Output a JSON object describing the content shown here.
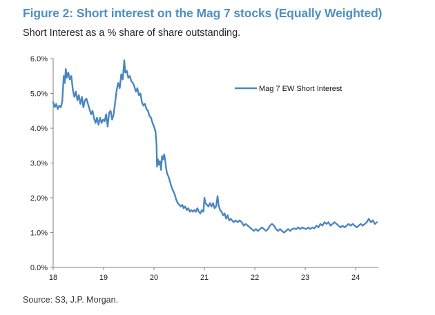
{
  "header": {
    "title": "Figure 2: Short interest on the Mag 7 stocks (Equally Weighted)",
    "subtitle": "Short Interest as a % share of share outstanding."
  },
  "footer": {
    "source": "Source: S3, J.P. Morgan."
  },
  "colors": {
    "title": "#4f8fc4",
    "line": "#4a86c0",
    "axis": "#7f7f7f"
  },
  "chart_data": {
    "type": "line",
    "title": "",
    "xlabel": "",
    "ylabel": "",
    "xlim": [
      18,
      24.45
    ],
    "ylim": [
      0,
      6
    ],
    "grid": false,
    "legend_position": "top-right",
    "y_ticks": [
      "0.0%",
      "1.0%",
      "2.0%",
      "3.0%",
      "4.0%",
      "5.0%",
      "6.0%"
    ],
    "x_ticks": [
      "18",
      "19",
      "20",
      "21",
      "22",
      "23",
      "24"
    ],
    "series": [
      {
        "name": "Mag 7 EW Short Interest",
        "points": [
          [
            18.0,
            4.75
          ],
          [
            18.03,
            4.6
          ],
          [
            18.06,
            4.7
          ],
          [
            18.09,
            4.55
          ],
          [
            18.12,
            4.65
          ],
          [
            18.15,
            4.6
          ],
          [
            18.18,
            4.75
          ],
          [
            18.21,
            5.5
          ],
          [
            18.23,
            5.3
          ],
          [
            18.25,
            5.7
          ],
          [
            18.27,
            5.45
          ],
          [
            18.3,
            5.6
          ],
          [
            18.33,
            5.4
          ],
          [
            18.36,
            5.5
          ],
          [
            18.39,
            5.1
          ],
          [
            18.42,
            4.9
          ],
          [
            18.45,
            5.05
          ],
          [
            18.48,
            4.8
          ],
          [
            18.51,
            4.95
          ],
          [
            18.54,
            4.7
          ],
          [
            18.57,
            4.9
          ],
          [
            18.6,
            4.6
          ],
          [
            18.63,
            4.8
          ],
          [
            18.66,
            4.85
          ],
          [
            18.69,
            4.7
          ],
          [
            18.72,
            4.55
          ],
          [
            18.75,
            4.4
          ],
          [
            18.78,
            4.5
          ],
          [
            18.81,
            4.3
          ],
          [
            18.84,
            4.15
          ],
          [
            18.87,
            4.3
          ],
          [
            18.9,
            4.1
          ],
          [
            18.93,
            4.3
          ],
          [
            18.96,
            4.15
          ],
          [
            18.99,
            4.25
          ],
          [
            19.02,
            4.2
          ],
          [
            19.05,
            4.4
          ],
          [
            19.08,
            4.05
          ],
          [
            19.11,
            4.45
          ],
          [
            19.14,
            4.5
          ],
          [
            19.17,
            4.25
          ],
          [
            19.2,
            4.4
          ],
          [
            19.23,
            4.75
          ],
          [
            19.26,
            5.1
          ],
          [
            19.29,
            5.3
          ],
          [
            19.32,
            5.15
          ],
          [
            19.35,
            5.55
          ],
          [
            19.38,
            5.4
          ],
          [
            19.41,
            5.95
          ],
          [
            19.43,
            5.6
          ],
          [
            19.46,
            5.65
          ],
          [
            19.49,
            5.45
          ],
          [
            19.52,
            5.5
          ],
          [
            19.55,
            5.35
          ],
          [
            19.58,
            5.3
          ],
          [
            19.61,
            5.2
          ],
          [
            19.64,
            5.05
          ],
          [
            19.67,
            5.15
          ],
          [
            19.7,
            4.95
          ],
          [
            19.73,
            5.0
          ],
          [
            19.76,
            4.75
          ],
          [
            19.79,
            4.65
          ],
          [
            19.82,
            4.7
          ],
          [
            19.85,
            4.55
          ],
          [
            19.88,
            4.5
          ],
          [
            19.91,
            4.35
          ],
          [
            19.94,
            4.3
          ],
          [
            19.97,
            4.15
          ],
          [
            20.0,
            4.05
          ],
          [
            20.03,
            3.9
          ],
          [
            20.05,
            3.55
          ],
          [
            20.06,
            2.9
          ],
          [
            20.08,
            3.1
          ],
          [
            20.1,
            2.95
          ],
          [
            20.12,
            3.05
          ],
          [
            20.14,
            2.8
          ],
          [
            20.16,
            3.2
          ],
          [
            20.18,
            3.1
          ],
          [
            20.2,
            3.25
          ],
          [
            20.22,
            3.1
          ],
          [
            20.24,
            2.85
          ],
          [
            20.26,
            2.7
          ],
          [
            20.29,
            2.6
          ],
          [
            20.32,
            2.45
          ],
          [
            20.35,
            2.3
          ],
          [
            20.38,
            2.2
          ],
          [
            20.41,
            2.1
          ],
          [
            20.44,
            1.95
          ],
          [
            20.47,
            1.85
          ],
          [
            20.5,
            1.8
          ],
          [
            20.53,
            1.75
          ],
          [
            20.56,
            1.8
          ],
          [
            20.59,
            1.7
          ],
          [
            20.62,
            1.75
          ],
          [
            20.65,
            1.65
          ],
          [
            20.68,
            1.7
          ],
          [
            20.71,
            1.6
          ],
          [
            20.74,
            1.65
          ],
          [
            20.77,
            1.6
          ],
          [
            20.8,
            1.65
          ],
          [
            20.83,
            1.6
          ],
          [
            20.86,
            1.7
          ],
          [
            20.89,
            1.6
          ],
          [
            20.92,
            1.55
          ],
          [
            20.95,
            1.65
          ],
          [
            20.98,
            1.6
          ],
          [
            21.0,
            2.0
          ],
          [
            21.02,
            1.85
          ],
          [
            21.05,
            1.8
          ],
          [
            21.08,
            1.75
          ],
          [
            21.11,
            1.85
          ],
          [
            21.14,
            1.75
          ],
          [
            21.17,
            1.85
          ],
          [
            21.2,
            1.7
          ],
          [
            21.23,
            1.75
          ],
          [
            21.26,
            2.05
          ],
          [
            21.28,
            1.8
          ],
          [
            21.31,
            1.65
          ],
          [
            21.34,
            1.6
          ],
          [
            21.37,
            1.5
          ],
          [
            21.4,
            1.55
          ],
          [
            21.43,
            1.4
          ],
          [
            21.46,
            1.5
          ],
          [
            21.49,
            1.35
          ],
          [
            21.52,
            1.4
          ],
          [
            21.55,
            1.35
          ],
          [
            21.58,
            1.3
          ],
          [
            21.62,
            1.35
          ],
          [
            21.66,
            1.3
          ],
          [
            21.7,
            1.35
          ],
          [
            21.74,
            1.3
          ],
          [
            21.78,
            1.2
          ],
          [
            21.82,
            1.25
          ],
          [
            21.86,
            1.2
          ],
          [
            21.9,
            1.15
          ],
          [
            21.94,
            1.1
          ],
          [
            21.98,
            1.05
          ],
          [
            22.02,
            1.1
          ],
          [
            22.06,
            1.05
          ],
          [
            22.1,
            1.1
          ],
          [
            22.14,
            1.15
          ],
          [
            22.18,
            1.1
          ],
          [
            22.22,
            1.05
          ],
          [
            22.26,
            1.1
          ],
          [
            22.3,
            1.2
          ],
          [
            22.34,
            1.25
          ],
          [
            22.38,
            1.2
          ],
          [
            22.42,
            1.1
          ],
          [
            22.46,
            1.05
          ],
          [
            22.5,
            1.1
          ],
          [
            22.54,
            1.05
          ],
          [
            22.58,
            1.0
          ],
          [
            22.62,
            1.05
          ],
          [
            22.66,
            1.1
          ],
          [
            22.7,
            1.05
          ],
          [
            22.74,
            1.1
          ],
          [
            22.78,
            1.12
          ],
          [
            22.82,
            1.1
          ],
          [
            22.86,
            1.15
          ],
          [
            22.9,
            1.1
          ],
          [
            22.94,
            1.15
          ],
          [
            22.98,
            1.12
          ],
          [
            23.02,
            1.1
          ],
          [
            23.06,
            1.15
          ],
          [
            23.1,
            1.1
          ],
          [
            23.14,
            1.15
          ],
          [
            23.18,
            1.12
          ],
          [
            23.22,
            1.2
          ],
          [
            23.26,
            1.15
          ],
          [
            23.3,
            1.25
          ],
          [
            23.34,
            1.2
          ],
          [
            23.38,
            1.3
          ],
          [
            23.42,
            1.25
          ],
          [
            23.46,
            1.3
          ],
          [
            23.5,
            1.2
          ],
          [
            23.54,
            1.25
          ],
          [
            23.58,
            1.3
          ],
          [
            23.62,
            1.25
          ],
          [
            23.66,
            1.2
          ],
          [
            23.7,
            1.15
          ],
          [
            23.74,
            1.2
          ],
          [
            23.78,
            1.15
          ],
          [
            23.82,
            1.2
          ],
          [
            23.86,
            1.25
          ],
          [
            23.9,
            1.2
          ],
          [
            23.94,
            1.25
          ],
          [
            23.98,
            1.2
          ],
          [
            24.02,
            1.15
          ],
          [
            24.06,
            1.2
          ],
          [
            24.1,
            1.25
          ],
          [
            24.14,
            1.2
          ],
          [
            24.18,
            1.25
          ],
          [
            24.22,
            1.3
          ],
          [
            24.26,
            1.4
          ],
          [
            24.3,
            1.3
          ],
          [
            24.34,
            1.35
          ],
          [
            24.38,
            1.25
          ],
          [
            24.42,
            1.3
          ]
        ]
      }
    ]
  }
}
